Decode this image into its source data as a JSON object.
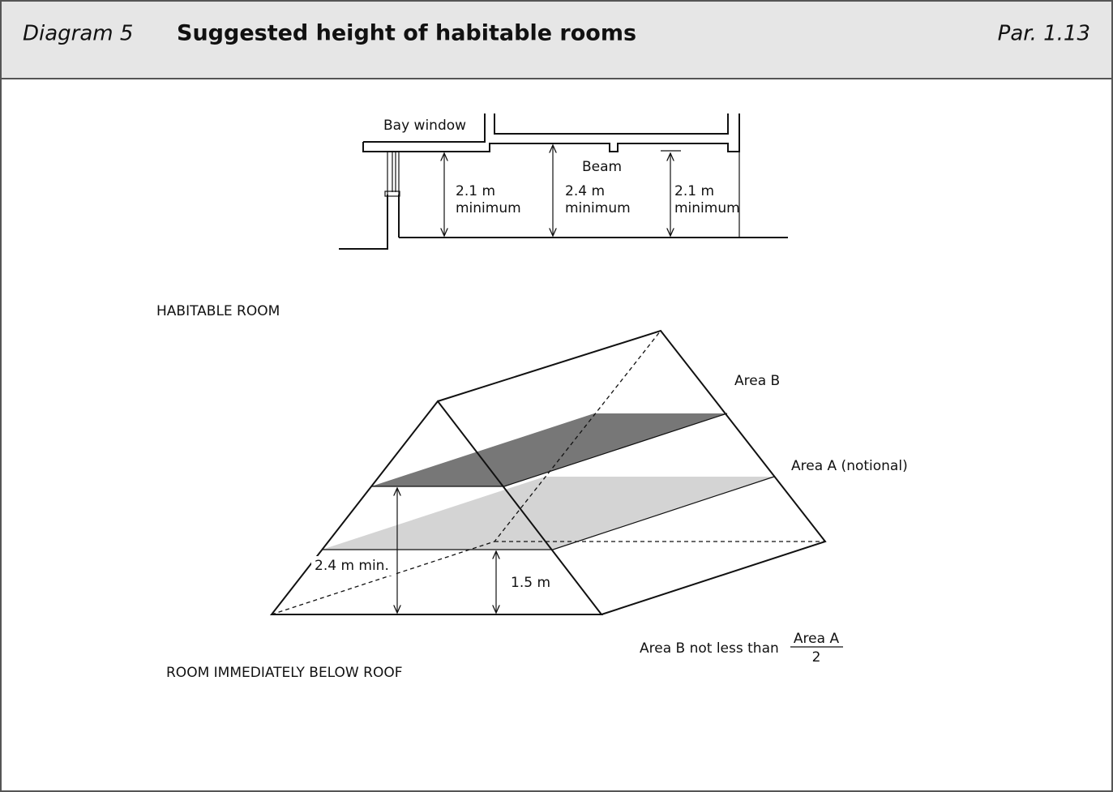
{
  "header": {
    "label": "Diagram 5",
    "title": "Suggested height of habitable rooms",
    "reference": "Par. 1.13"
  },
  "section": {
    "caption": "HABITABLE ROOM",
    "bay_window": "Bay window",
    "beam": "Beam",
    "dimensions": [
      {
        "height": "2.1 m",
        "note": "minimum"
      },
      {
        "height": "2.4 m",
        "note": "minimum"
      },
      {
        "height": "2.1 m",
        "note": "minimum"
      }
    ]
  },
  "roof": {
    "caption": "ROOM IMMEDIATELY BELOW ROOF",
    "area_b": "Area B",
    "area_a": "Area A (notional)",
    "height_upper": "2.4 m min.",
    "height_lower": "1.5 m",
    "rule": {
      "text": "Area B not less than",
      "numerator": "Area A",
      "denominator": "2"
    }
  }
}
